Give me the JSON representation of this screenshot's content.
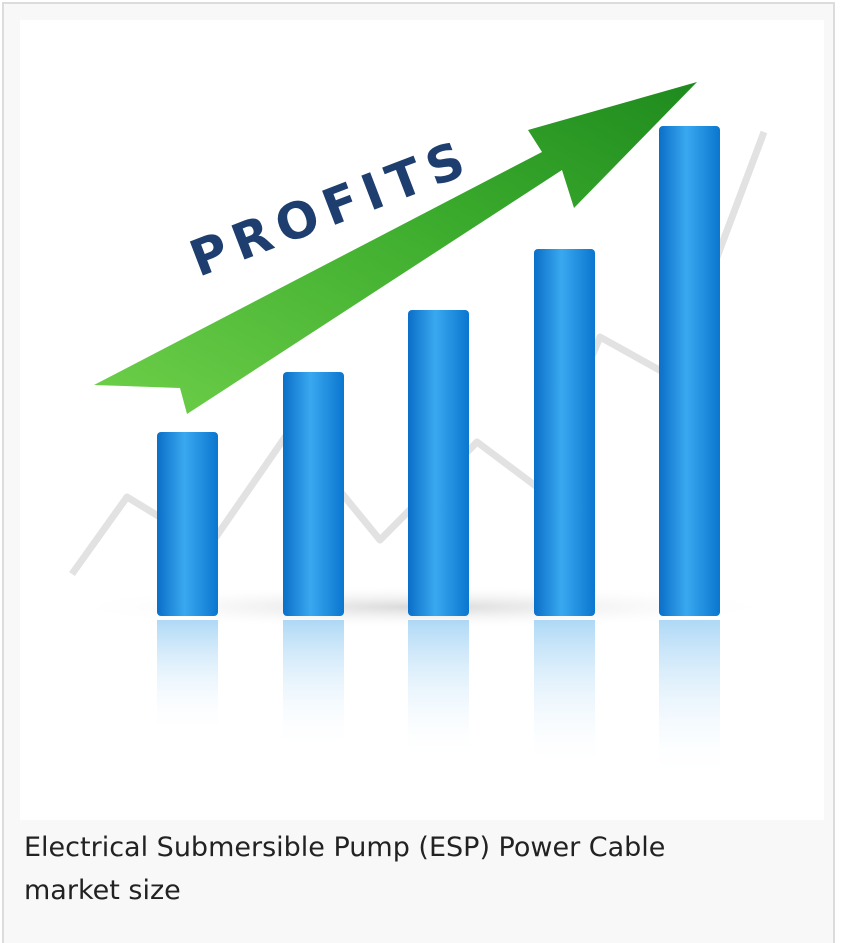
{
  "figure": {
    "image_text": "PROFITS",
    "caption": "Electrical Submersible Pump (ESP) Power Cable market size"
  }
}
